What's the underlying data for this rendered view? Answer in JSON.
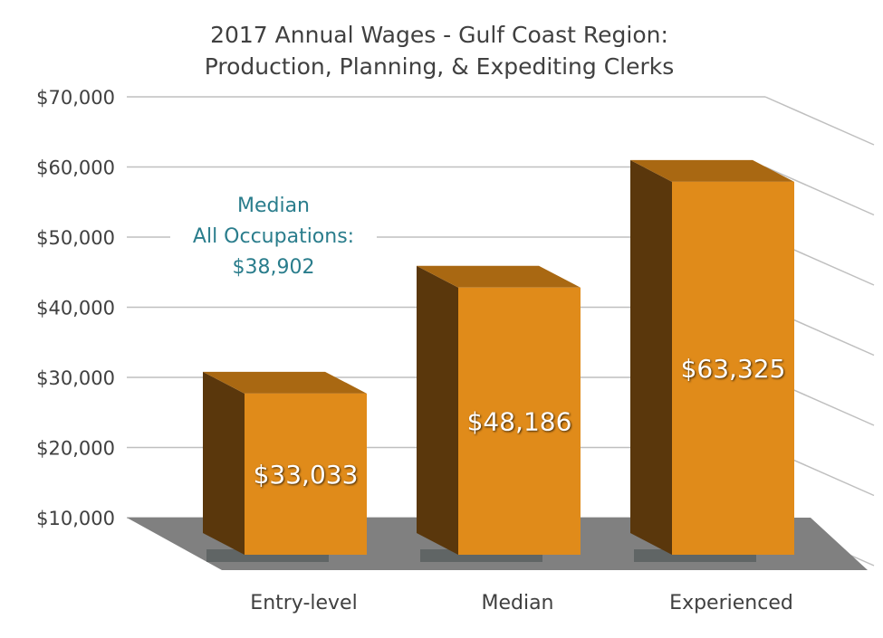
{
  "chart_data": {
    "type": "bar",
    "title": "2017 Annual Wages - Gulf Coast Region:",
    "subtitle": "Production, Planning, & Expediting Clerks",
    "categories": [
      "Entry-level",
      "Median",
      "Experienced"
    ],
    "values": [
      33033,
      48186,
      63325
    ],
    "value_labels": [
      "$33,033",
      "$48,186",
      "$63,325"
    ],
    "ylim": [
      10000,
      70000
    ],
    "yticks": [
      "$10,000",
      "$20,000",
      "$30,000",
      "$40,000",
      "$50,000",
      "$60,000",
      "$70,000"
    ],
    "grid": true,
    "three_d": true,
    "annotation": {
      "lines": [
        "Median",
        "All Occupations:",
        "$38,902"
      ],
      "value": 38902
    },
    "colors": {
      "bar_front": "#e08b1a",
      "bar_top": "#a96812",
      "bar_side": "#5a370c",
      "floor": "#808080",
      "grid": "#bfbfbf",
      "annotation": "#2a7d8c"
    }
  }
}
